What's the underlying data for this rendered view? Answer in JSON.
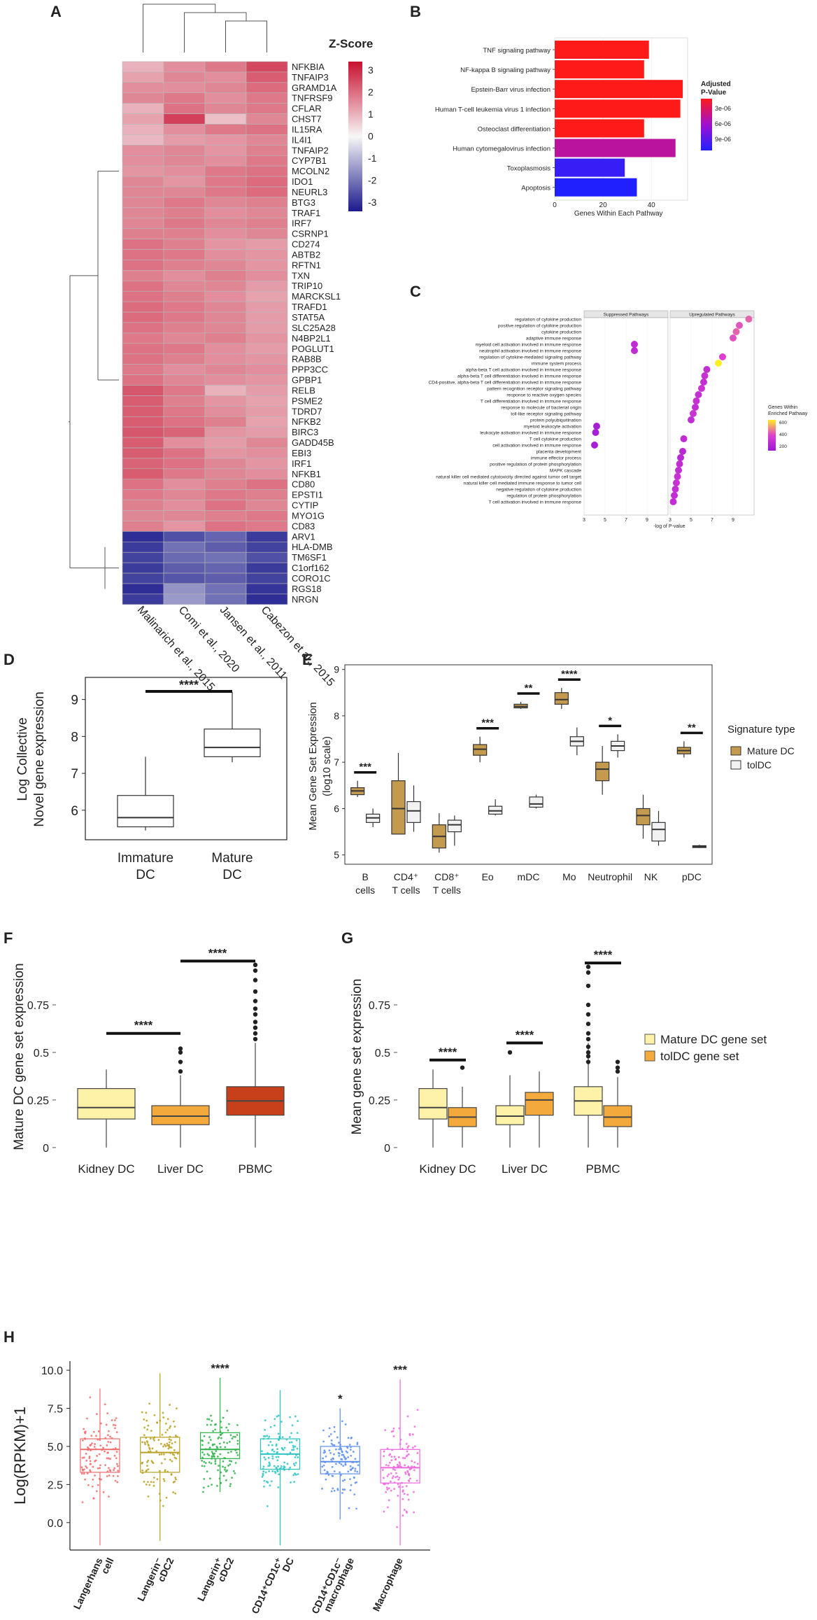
{
  "panels": {
    "A": "A",
    "B": "B",
    "C": "C",
    "D": "D",
    "E": "E",
    "F": "F",
    "G": "G",
    "H": "H"
  },
  "colors": {
    "heat_low": "#1a1a8c",
    "heat_mid": "#f7f7f7",
    "heat_high": "#c8102e",
    "tolDC": "#f2f2f2",
    "matureDC": "#c49a4f",
    "kidney": "#fdf2a8",
    "liver": "#f4a93b",
    "pbmc": "#c8401a",
    "mature_set": "#fdf2a8",
    "tol_set": "#f4a93b"
  },
  "chart_data": [
    {
      "id": "A",
      "type": "heatmap",
      "title": "Z-Score",
      "legend_ticks": [
        "3",
        "2",
        "1",
        "0",
        "-1",
        "-2",
        "-3"
      ],
      "columns": [
        "Malinarich et al., 2015",
        "Comi et al., 2020",
        "Jansen et al., 2011",
        "Cabezon et al., 2015"
      ],
      "rows": [
        "NFKBIA",
        "TNFAIP3",
        "GRAMD1A",
        "TNFRSF9",
        "CFLAR",
        "CHST7",
        "IL15RA",
        "IL4I1",
        "TNFAIP2",
        "CYP7B1",
        "MCOLN2",
        "IDO1",
        "NEURL3",
        "BTG3",
        "TRAF1",
        "IRF7",
        "CSRNP1",
        "CD274",
        "ABTB2",
        "RFTN1",
        "TXN",
        "TRIP10",
        "MARCKSL1",
        "TRAFD1",
        "STAT5A",
        "SLC25A28",
        "N4BP2L1",
        "POGLUT1",
        "RAB8B",
        "PPP3CC",
        "GPBP1",
        "RELB",
        "PSME2",
        "TDRD7",
        "NFKB2",
        "BIRC3",
        "GADD45B",
        "EBI3",
        "IRF1",
        "NFKB1",
        "CD80",
        "EPSTI1",
        "CYTIP",
        "MYO1G",
        "CD83",
        "ARV1",
        "HLA-DMB",
        "TM6SF1",
        "C1orf162",
        "CORO1C",
        "RGS18",
        "NRGN"
      ],
      "values": [
        [
          1.0,
          1.5,
          1.8,
          2.5
        ],
        [
          1.2,
          1.6,
          1.5,
          2.2
        ],
        [
          1.5,
          1.5,
          1.6,
          2.0
        ],
        [
          1.6,
          1.8,
          1.5,
          1.8
        ],
        [
          1.0,
          1.9,
          1.6,
          1.8
        ],
        [
          1.2,
          2.6,
          0.8,
          1.6
        ],
        [
          1.0,
          1.5,
          1.8,
          1.9
        ],
        [
          0.9,
          1.3,
          1.4,
          1.6
        ],
        [
          1.5,
          1.6,
          1.4,
          1.7
        ],
        [
          1.5,
          1.6,
          1.5,
          1.8
        ],
        [
          1.4,
          1.5,
          1.8,
          1.9
        ],
        [
          1.6,
          1.4,
          1.8,
          2.0
        ],
        [
          1.6,
          1.6,
          1.8,
          2.0
        ],
        [
          1.6,
          1.8,
          1.6,
          1.7
        ],
        [
          1.6,
          1.7,
          1.5,
          1.6
        ],
        [
          1.6,
          1.8,
          1.6,
          1.7
        ],
        [
          1.7,
          1.7,
          1.5,
          1.6
        ],
        [
          1.9,
          1.7,
          1.4,
          1.3
        ],
        [
          1.9,
          1.8,
          1.5,
          1.4
        ],
        [
          1.9,
          1.7,
          1.6,
          1.4
        ],
        [
          1.7,
          1.5,
          1.7,
          1.5
        ],
        [
          1.9,
          1.6,
          1.6,
          1.3
        ],
        [
          1.9,
          1.7,
          1.5,
          1.2
        ],
        [
          2.0,
          1.8,
          1.6,
          1.3
        ],
        [
          2.0,
          1.8,
          1.6,
          1.3
        ],
        [
          1.9,
          1.7,
          1.6,
          1.3
        ],
        [
          1.8,
          1.6,
          1.7,
          1.4
        ],
        [
          1.9,
          1.8,
          1.5,
          1.3
        ],
        [
          1.9,
          1.7,
          1.5,
          1.4
        ],
        [
          1.8,
          1.5,
          1.6,
          1.5
        ],
        [
          1.9,
          1.6,
          1.5,
          1.4
        ],
        [
          2.3,
          1.8,
          1.0,
          1.3
        ],
        [
          2.2,
          1.7,
          1.4,
          1.2
        ],
        [
          2.2,
          1.8,
          1.5,
          1.3
        ],
        [
          2.2,
          1.9,
          1.7,
          1.2
        ],
        [
          2.3,
          2.1,
          1.4,
          1.3
        ],
        [
          2.2,
          1.5,
          1.3,
          1.6
        ],
        [
          2.2,
          1.9,
          1.4,
          1.5
        ],
        [
          2.1,
          1.9,
          1.6,
          1.4
        ],
        [
          2.2,
          1.8,
          1.6,
          1.5
        ],
        [
          1.9,
          1.5,
          1.7,
          1.9
        ],
        [
          1.8,
          1.6,
          1.8,
          1.7
        ],
        [
          1.7,
          1.5,
          1.9,
          1.6
        ],
        [
          1.6,
          1.6,
          1.7,
          1.8
        ],
        [
          1.7,
          1.4,
          1.9,
          1.8
        ],
        [
          -3.0,
          -2.5,
          -2.2,
          -2.8
        ],
        [
          -2.8,
          -2.0,
          -2.3,
          -2.7
        ],
        [
          -2.7,
          -2.1,
          -2.0,
          -2.5
        ],
        [
          -2.8,
          -2.3,
          -2.2,
          -2.8
        ],
        [
          -2.7,
          -2.4,
          -2.3,
          -2.7
        ],
        [
          -3.0,
          -1.5,
          -2.0,
          -2.9
        ],
        [
          -2.8,
          -1.4,
          -2.0,
          -3.0
        ]
      ]
    },
    {
      "id": "B",
      "type": "bar",
      "orientation": "horizontal",
      "categories": [
        "TNF signaling pathway",
        "NF-kappa B signaling pathway",
        "Epstein-Barr virus infection",
        "Human T-cell leukemia virus 1 infection",
        "Osteoclast differentiation",
        "Human cytomegalovirus infection",
        "Toxoplasmosis",
        "Apoptosis"
      ],
      "values": [
        39,
        37,
        53,
        52,
        37,
        50,
        29,
        34
      ],
      "pvalues": [
        8e-07,
        9e-07,
        6e-07,
        7e-07,
        1e-06,
        5e-06,
        1.1e-05,
        1.2e-05
      ],
      "xlabel": "Genes Within Each Pathway",
      "xticks": [
        "0",
        "20",
        "40"
      ],
      "xlim": [
        0,
        55
      ],
      "legend_title_1": "Adjusted",
      "legend_title_2": "P-Value",
      "legend_ticks": [
        "3e-06",
        "6e-06",
        "9e-06"
      ]
    },
    {
      "id": "C",
      "type": "scatter",
      "facets": [
        "Suppressed Pathways",
        "Upregulated Pathways"
      ],
      "terms": [
        "regulation of cytokine production",
        "positive regulation of cytokine production",
        "cytokine production",
        "adaptive immune response",
        "myeloid cell activation involved in immune response",
        "neutrophil activation involved in immune response",
        "regulation of cytokine-mediated signaling pathway",
        "immune system process",
        "alpha-beta T cell activation involved in immune response",
        "alpha-beta T cell differentiation involved in immune response",
        "CD4-positive, alpha-beta T cell differentiation involved in immune response",
        "pattern recognition receptor signaling pathway",
        "response to reactive oxygen species",
        "T cell differentiation involved in immune response",
        "response to molecule of bacterial origin",
        "toll-like receptor signaling pathway",
        "protein polyubiquitination",
        "myeloid leukocyte activation",
        "leukocyte activation involved in immune response",
        "T cell cytokine production",
        "cell activation involved in immune response",
        "placenta development",
        "immune effector process",
        "positive regulation of protein phosphorylation",
        "MAPK cascade",
        "natural killer cell mediated cytotoxicity directed against tumor cell target",
        "natural killer cell mediated immune response to tumor cell",
        "negative regulation of cytokine production",
        "regulation of protein phosphorylation",
        "T cell activation involved in immune response"
      ],
      "suppressed_x": [
        null,
        null,
        null,
        null,
        7.8,
        7.8,
        null,
        null,
        null,
        null,
        null,
        null,
        null,
        null,
        null,
        null,
        null,
        4.2,
        4.1,
        null,
        4.0,
        null,
        null,
        null,
        null,
        null,
        null,
        null,
        null,
        null
      ],
      "upregulated_x": [
        10.5,
        9.6,
        9.3,
        9.0,
        null,
        null,
        8.0,
        7.6,
        6.5,
        6.3,
        6.2,
        6.0,
        5.7,
        5.5,
        5.4,
        5.2,
        5.0,
        null,
        null,
        4.3,
        null,
        4.2,
        4.0,
        3.9,
        3.8,
        3.7,
        3.6,
        3.5,
        3.4,
        3.3
      ],
      "genes": [
        480,
        460,
        480,
        450,
        300,
        300,
        420,
        700,
        320,
        330,
        320,
        340,
        320,
        330,
        320,
        340,
        300,
        200,
        200,
        300,
        200,
        280,
        280,
        300,
        310,
        330,
        330,
        320,
        310,
        300
      ],
      "xlabel": "-log of P-value",
      "xticks": [
        "3",
        "5",
        "7",
        "9"
      ],
      "xlim": [
        3,
        11
      ],
      "legend_title_1": "Genes Within",
      "legend_title_2": "Enriched Pathway",
      "legend_ticks": [
        "600",
        "400",
        "200"
      ]
    },
    {
      "id": "D",
      "type": "box",
      "categories": [
        "Immature DC",
        "Mature DC"
      ],
      "stats": [
        {
          "min": 5.45,
          "q1": 5.55,
          "median": 5.8,
          "q3": 6.4,
          "max": 7.45
        },
        {
          "min": 7.3,
          "q1": 7.45,
          "median": 7.7,
          "q3": 8.2,
          "max": 9.2
        }
      ],
      "ylabel_1": "Log Collective",
      "ylabel_2": "Novel gene expression",
      "yticks": [
        "6",
        "7",
        "8",
        "9"
      ],
      "ylim": [
        5.2,
        9.6
      ],
      "sig": "****"
    },
    {
      "id": "E",
      "type": "box",
      "categories": [
        "B cells",
        "CD4+ T cells",
        "CD8+ T cells",
        "Eo",
        "mDC",
        "Mo",
        "Neutrophil",
        "NK",
        "pDC"
      ],
      "mature": [
        {
          "min": 6.25,
          "q1": 6.3,
          "median": 6.38,
          "q3": 6.45,
          "max": 6.6
        },
        {
          "min": 5.45,
          "q1": 5.45,
          "median": 6.0,
          "q3": 6.6,
          "max": 7.2
        },
        {
          "min": 5.05,
          "q1": 5.15,
          "median": 5.4,
          "q3": 5.65,
          "max": 5.9
        },
        {
          "min": 7.0,
          "q1": 7.15,
          "median": 7.28,
          "q3": 7.38,
          "max": 7.55
        },
        {
          "min": 8.15,
          "q1": 8.17,
          "median": 8.2,
          "q3": 8.25,
          "max": 8.3
        },
        {
          "min": 8.15,
          "q1": 8.25,
          "median": 8.35,
          "q3": 8.5,
          "max": 8.6
        },
        {
          "min": 6.3,
          "q1": 6.6,
          "median": 6.85,
          "q3": 7.0,
          "max": 7.35
        },
        {
          "min": 5.35,
          "q1": 5.65,
          "median": 5.85,
          "q3": 6.0,
          "max": 6.3
        },
        {
          "min": 7.1,
          "q1": 7.18,
          "median": 7.25,
          "q3": 7.32,
          "max": 7.45
        }
      ],
      "tol": [
        {
          "min": 5.6,
          "q1": 5.7,
          "median": 5.8,
          "q3": 5.88,
          "max": 6.0
        },
        {
          "min": 5.5,
          "q1": 5.7,
          "median": 5.95,
          "q3": 6.15,
          "max": 6.5
        },
        {
          "min": 5.2,
          "q1": 5.5,
          "median": 5.65,
          "q3": 5.75,
          "max": 5.85
        },
        {
          "min": 5.85,
          "q1": 5.88,
          "median": 5.95,
          "q3": 6.05,
          "max": 6.2
        },
        {
          "min": 6.0,
          "q1": 6.03,
          "median": 6.1,
          "q3": 6.25,
          "max": 6.3
        },
        {
          "min": 7.15,
          "q1": 7.35,
          "median": 7.45,
          "q3": 7.55,
          "max": 7.75
        },
        {
          "min": 7.1,
          "q1": 7.25,
          "median": 7.35,
          "q3": 7.45,
          "max": 7.6
        },
        {
          "min": 5.2,
          "q1": 5.3,
          "median": 5.55,
          "q3": 5.7,
          "max": 5.95
        },
        {
          "min": 5.15,
          "q1": 5.16,
          "median": 5.18,
          "q3": 5.2,
          "max": 5.22
        }
      ],
      "sig": [
        "***",
        "",
        "",
        "***",
        "**",
        "****",
        "*",
        "",
        "**"
      ],
      "ylabel_1": "Mean Gene Set Expression",
      "ylabel_2": "(log10 scale)",
      "yticks": [
        "5",
        "6",
        "7",
        "8",
        "9"
      ],
      "ylim": [
        4.8,
        9.1
      ],
      "legend_title": "Signature type",
      "legend": [
        "Mature DC",
        "tolDC"
      ]
    },
    {
      "id": "F",
      "type": "box",
      "categories": [
        "Kidney DC",
        "Liver DC",
        "PBMC"
      ],
      "stats": [
        {
          "min": 0.0,
          "q1": 0.15,
          "median": 0.21,
          "q3": 0.31,
          "max": 0.41
        },
        {
          "min": 0.0,
          "q1": 0.12,
          "median": 0.165,
          "q3": 0.22,
          "max": 0.38
        },
        {
          "min": 0.0,
          "q1": 0.17,
          "median": 0.245,
          "q3": 0.32,
          "max": 0.55
        }
      ],
      "ylabel": "Mature DC gene set expression",
      "yticks": [
        "0",
        "0.25",
        "0.5",
        "0.75"
      ],
      "ylim": [
        -0.03,
        1.0
      ],
      "sig": [
        "****",
        "****"
      ]
    },
    {
      "id": "G",
      "type": "box",
      "categories": [
        "Kidney DC",
        "Liver DC",
        "PBMC"
      ],
      "mature": [
        {
          "min": 0.0,
          "q1": 0.15,
          "median": 0.21,
          "q3": 0.31,
          "max": 0.41
        },
        {
          "min": 0.0,
          "q1": 0.12,
          "median": 0.165,
          "q3": 0.22,
          "max": 0.38
        },
        {
          "min": 0.0,
          "q1": 0.17,
          "median": 0.245,
          "q3": 0.32,
          "max": 0.55
        }
      ],
      "tol": [
        {
          "min": 0.0,
          "q1": 0.11,
          "median": 0.16,
          "q3": 0.21,
          "max": 0.32
        },
        {
          "min": 0.0,
          "q1": 0.17,
          "median": 0.25,
          "q3": 0.29,
          "max": 0.4
        },
        {
          "min": 0.0,
          "q1": 0.11,
          "median": 0.16,
          "q3": 0.22,
          "max": 0.37
        }
      ],
      "ylabel": "Mean gene set expression",
      "yticks": [
        "0",
        "0.25",
        "0.5",
        "0.75"
      ],
      "ylim": [
        -0.03,
        1.0
      ],
      "sig": [
        "****",
        "****",
        "****"
      ],
      "legend": [
        "Mature DC gene set",
        "tolDC gene set"
      ]
    },
    {
      "id": "H",
      "type": "box",
      "categories": [
        "Langerhans cell",
        "Langerin- cDC2",
        "Langerin+ cDC2",
        "CD14+CD1c+ DC",
        "CD14+CD1c- macrophage",
        "Macrophage"
      ],
      "stats": [
        {
          "min": -1.5,
          "q1": 3.3,
          "median": 4.8,
          "q3": 5.5,
          "max": 8.8
        },
        {
          "min": -1.2,
          "q1": 3.3,
          "median": 4.6,
          "q3": 5.6,
          "max": 9.8
        },
        {
          "min": 2.0,
          "q1": 4.2,
          "median": 4.8,
          "q3": 5.9,
          "max": 9.5
        },
        {
          "min": -1.5,
          "q1": 3.5,
          "median": 4.5,
          "q3": 5.5,
          "max": 8.7
        },
        {
          "min": 0.2,
          "q1": 3.2,
          "median": 4.0,
          "q3": 5.0,
          "max": 7.5
        },
        {
          "min": -1.5,
          "q1": 2.6,
          "median": 3.6,
          "q3": 4.8,
          "max": 9.4
        }
      ],
      "colors": [
        "#f26b6b",
        "#b8a020",
        "#2fb34a",
        "#2bc4c4",
        "#5b8ff0",
        "#ee66dd"
      ],
      "ylabel": "Log(RPKM)+1",
      "yticks": [
        "0.0",
        "2.5",
        "5.0",
        "7.5",
        "10.0"
      ],
      "ylim": [
        -1.8,
        10.6
      ],
      "sig": [
        "",
        "",
        "****",
        "",
        "*",
        "***"
      ]
    }
  ]
}
